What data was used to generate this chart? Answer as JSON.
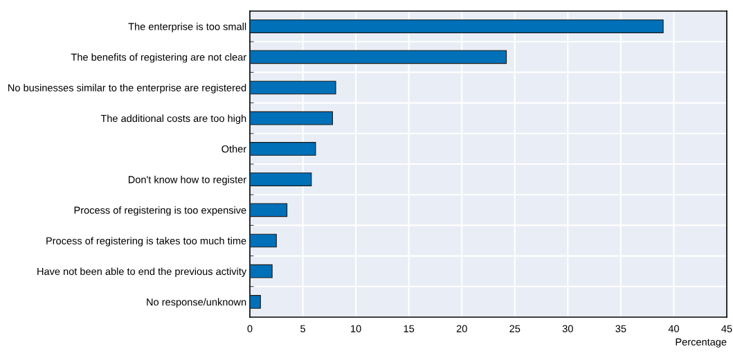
{
  "chart_data": {
    "type": "bar",
    "orientation": "horizontal",
    "xlabel": "Percentage",
    "categories": [
      "The enterprise is too small",
      "The benefits of registering are not clear",
      "No businesses similar to the enterprise are registered",
      "The additional costs are too high",
      "Other",
      "Don't know how to register",
      "Process of registering is too expensive",
      "Process of registering is takes too much time",
      "Have not been able to end the previous activity",
      "No response/unknown"
    ],
    "values": [
      39.0,
      24.2,
      8.1,
      7.8,
      6.2,
      5.8,
      3.5,
      2.5,
      2.1,
      1.0
    ],
    "color": "#0070b8",
    "xlim": [
      0,
      45
    ],
    "xticks": [
      0,
      5,
      10,
      15,
      20,
      25,
      30,
      35,
      40,
      45
    ],
    "grid": true
  }
}
